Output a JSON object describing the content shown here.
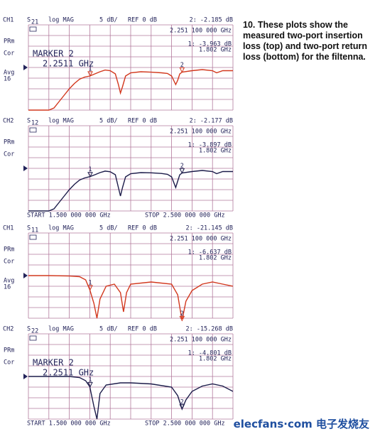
{
  "caption": "10. These plots show the measured two-port insertion loss (top) and two-port return loss (bottom) for the filtenna.",
  "watermark": "elecfans·com 电子发烧友",
  "chart_data": [
    {
      "type": "line",
      "channel": "CH1",
      "parameter": {
        "letter": "S",
        "sub": "21"
      },
      "format": "log MAG",
      "scale": "5 dB/",
      "reference": "REF 0 dB",
      "readout": "2: -2.185 dB",
      "marker_frequency": "2.251 100 000 GHz",
      "marker1_readout": "1: -3.963 dB",
      "marker1_frequency": "1.802 GHz",
      "side_labels": [
        "PRm",
        "Cor",
        "Avg",
        "16"
      ],
      "marker_box": [
        "MARKER 2",
        "2.2511 GHz"
      ],
      "xlim": [
        1.5,
        2.5
      ],
      "ylim": [
        -20,
        20
      ],
      "x": [
        1.5,
        1.55,
        1.6,
        1.625,
        1.65,
        1.675,
        1.7,
        1.725,
        1.75,
        1.775,
        1.8,
        1.825,
        1.85,
        1.875,
        1.9,
        1.925,
        1.94,
        1.95,
        1.96,
        1.975,
        2.0,
        2.05,
        2.1,
        2.15,
        2.18,
        2.2,
        2.22,
        2.23,
        2.24,
        2.251,
        2.3,
        2.35,
        2.4,
        2.42,
        2.45,
        2.5
      ],
      "series": [
        {
          "color": "#d2381e",
          "values": [
            -20,
            -20,
            -20,
            -19,
            -16,
            -13,
            -10,
            -7.5,
            -5.5,
            -4.5,
            -4,
            -3,
            -2,
            -1.2,
            -1.5,
            -3,
            -8,
            -12,
            -9,
            -4,
            -2.5,
            -2,
            -2.2,
            -2.5,
            -2.8,
            -4,
            -8,
            -6,
            -3,
            -2.2,
            -1.5,
            -1,
            -1.5,
            -2.5,
            -1.5,
            -1.5
          ]
        }
      ],
      "markers": [
        {
          "label": "1",
          "x": 1.802,
          "value": -3.963
        },
        {
          "label": "2",
          "x": 2.2511,
          "value": -2.185
        }
      ]
    },
    {
      "type": "line",
      "channel": "CH2",
      "parameter": {
        "letter": "S",
        "sub": "12"
      },
      "format": "log MAG",
      "scale": "5 dB/",
      "reference": "REF 0 dB",
      "readout": "2: -2.177 dB",
      "marker_frequency": "2.251 100 000 GHz",
      "marker1_readout": "1: -3.897 dB",
      "marker1_frequency": "1.802 GHz",
      "side_labels": [
        "PRm",
        "Cor"
      ],
      "start": "START 1.500 000 000 GHz",
      "stop": "STOP 2.500 000 000 GHz",
      "xlim": [
        1.5,
        2.5
      ],
      "ylim": [
        -20,
        20
      ],
      "x": [
        1.5,
        1.55,
        1.6,
        1.625,
        1.65,
        1.675,
        1.7,
        1.725,
        1.75,
        1.775,
        1.8,
        1.825,
        1.85,
        1.875,
        1.9,
        1.925,
        1.94,
        1.95,
        1.96,
        1.975,
        2.0,
        2.05,
        2.1,
        2.15,
        2.18,
        2.2,
        2.22,
        2.23,
        2.24,
        2.251,
        2.3,
        2.35,
        2.4,
        2.42,
        2.45,
        2.5
      ],
      "series": [
        {
          "color": "#1c1c4a",
          "values": [
            -20,
            -20,
            -20,
            -19,
            -16,
            -13,
            -10,
            -7.5,
            -5.5,
            -4.5,
            -3.9,
            -3,
            -2,
            -1.3,
            -1.6,
            -3,
            -9,
            -13,
            -9,
            -4,
            -2.5,
            -2,
            -2.1,
            -2.4,
            -2.8,
            -4,
            -9,
            -6,
            -3,
            -2.2,
            -1.5,
            -1,
            -1.5,
            -2.5,
            -1.5,
            -1.5
          ]
        }
      ],
      "markers": [
        {
          "label": "1",
          "x": 1.802,
          "value": -3.897
        },
        {
          "label": "2",
          "x": 2.2511,
          "value": -2.177
        }
      ]
    },
    {
      "type": "line",
      "channel": "CH1",
      "parameter": {
        "letter": "S",
        "sub": "11"
      },
      "format": "log MAG",
      "scale": "5 dB/",
      "reference": "REF 0 dB",
      "readout": "2: -21.145 dB",
      "marker_frequency": "2.251 100 000 GHz",
      "marker1_readout": "1: -6.637 dB",
      "marker1_frequency": "1.802 GHz",
      "side_labels": [
        "PRm",
        "Cor",
        "Avg",
        "16"
      ],
      "xlim": [
        1.5,
        2.5
      ],
      "ylim": [
        -20,
        20
      ],
      "x": [
        1.5,
        1.6,
        1.7,
        1.75,
        1.78,
        1.8,
        1.82,
        1.835,
        1.85,
        1.88,
        1.92,
        1.95,
        1.965,
        1.98,
        2.0,
        2.1,
        2.2,
        2.23,
        2.251,
        2.27,
        2.3,
        2.35,
        2.4,
        2.45,
        2.5
      ],
      "series": [
        {
          "color": "#d2381e",
          "values": [
            0,
            0,
            -0.2,
            -0.5,
            -2,
            -6.6,
            -13,
            -20,
            -11,
            -5,
            -4,
            -8,
            -17,
            -8,
            -4,
            -3,
            -4,
            -9,
            -21.1,
            -12,
            -7,
            -4,
            -3,
            -4,
            -5
          ]
        }
      ],
      "markers": [
        {
          "label": "1",
          "x": 1.802,
          "value": -6.637
        },
        {
          "label": "2",
          "x": 2.2511,
          "value": -21.145
        }
      ]
    },
    {
      "type": "line",
      "channel": "CH2",
      "parameter": {
        "letter": "S",
        "sub": "22"
      },
      "format": "log MAG",
      "scale": "5 dB/",
      "reference": "REF 0 dB",
      "readout": "2: -15.268 dB",
      "marker_frequency": "2.251 100 000 GHz",
      "marker1_readout": "1: -4.801 dB",
      "marker1_frequency": "1.802 GHz",
      "side_labels": [
        "PRm",
        "Cor"
      ],
      "marker_box": [
        "MARKER 2",
        "2.2511 GHz"
      ],
      "start": "START 1.500 000 000 GHz",
      "stop": "STOP 2.500 000 000 GHz",
      "xlim": [
        1.5,
        2.5
      ],
      "ylim": [
        -20,
        20
      ],
      "x": [
        1.5,
        1.6,
        1.7,
        1.75,
        1.78,
        1.8,
        1.82,
        1.835,
        1.85,
        1.88,
        1.95,
        2.0,
        2.1,
        2.2,
        2.23,
        2.251,
        2.27,
        2.3,
        2.35,
        2.4,
        2.45,
        2.5
      ],
      "series": [
        {
          "color": "#1c1c4a",
          "values": [
            0,
            0,
            0,
            -0.5,
            -2,
            -4.8,
            -14,
            -20,
            -8,
            -4,
            -3,
            -3,
            -3.5,
            -5,
            -9,
            -15.3,
            -11,
            -7,
            -4.5,
            -3.5,
            -4.5,
            -7
          ]
        }
      ],
      "markers": [
        {
          "label": "1",
          "x": 1.802,
          "value": -4.801
        },
        {
          "label": "2",
          "x": 2.2511,
          "value": -15.268
        }
      ]
    }
  ]
}
